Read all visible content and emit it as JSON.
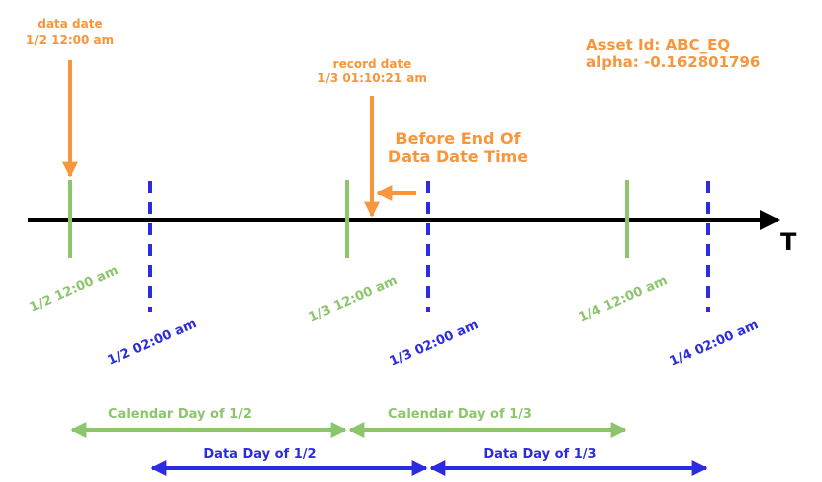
{
  "annotations": {
    "data_date_label": "data date",
    "data_date_value": "1/2 12:00 am",
    "record_date_label": "record date",
    "record_date_value": "1/3 01:10:21 am",
    "before_end_line1": "Before End Of",
    "before_end_line2": "Data Date Time",
    "asset_id": "Asset Id: ABC_EQ",
    "alpha": "alpha: -0.162801796"
  },
  "axis": {
    "label": "T"
  },
  "ticks": {
    "calendar": [
      "1/2 12:00 am",
      "1/3 12:00 am",
      "1/4 12:00 am"
    ],
    "data": [
      "1/2 02:00 am",
      "1/3 02:00 am",
      "1/4 02:00 am"
    ]
  },
  "spans": {
    "calendar": [
      "Calendar Day of 1/2",
      "Calendar Day of 1/3"
    ],
    "data": [
      "Data Day of 1/2",
      "Data Day of 1/3"
    ]
  },
  "colors": {
    "orange": "#f7963a",
    "green": "#8cc56b",
    "blue": "#2b2be0",
    "black": "#000000"
  }
}
